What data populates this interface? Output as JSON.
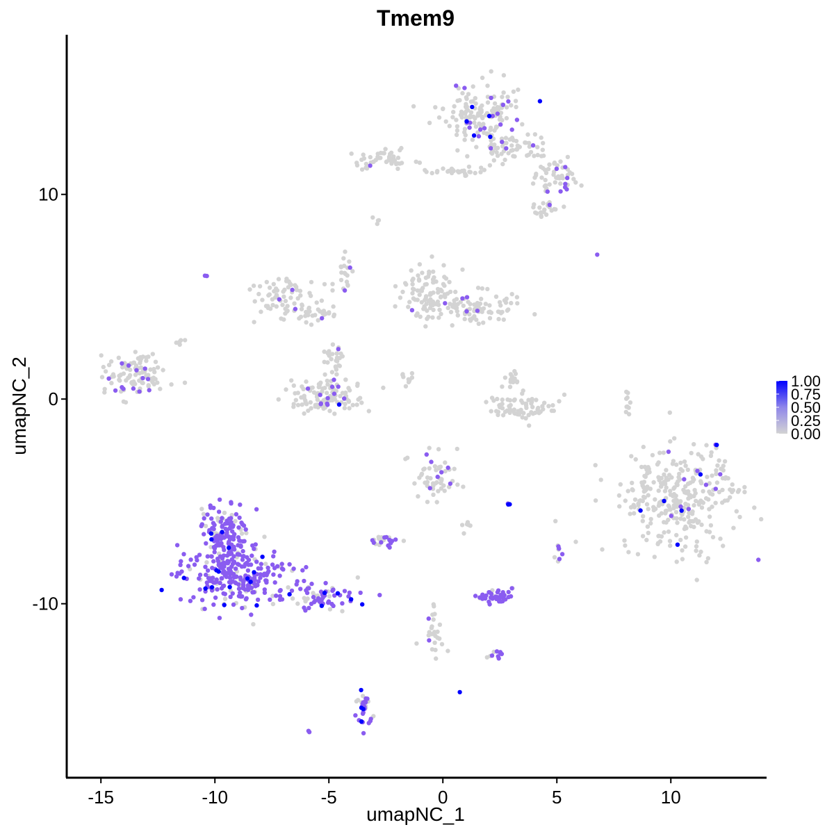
{
  "chart_data": {
    "type": "scatter",
    "title": "Tmem9",
    "xlabel": "umapNC_1",
    "ylabel": "umapNC_2",
    "xlim": [
      -16.5,
      14.2
    ],
    "ylim": [
      -18.5,
      17.8
    ],
    "x_ticks": [
      -15,
      -10,
      -5,
      0,
      5,
      10
    ],
    "x_tick_labels": [
      "-15",
      "-10",
      "-5",
      "0",
      "5",
      "10"
    ],
    "y_ticks": [
      -10,
      0,
      10
    ],
    "y_tick_labels": [
      "-10",
      "0",
      "10"
    ],
    "grid": false,
    "legend": {
      "placement": "right",
      "ticks": [
        1.0,
        0.75,
        0.5,
        0.25,
        0.0
      ],
      "tick_labels": [
        "1.00",
        "0.75",
        "0.50",
        "0.25",
        "0.00"
      ]
    },
    "color_low": "#d3d3d3",
    "color_high": "#0000ff",
    "color_mid": "#8a5cf0",
    "clusters": [
      {
        "cx": 1.6,
        "cy": 14.0,
        "rx": 1.5,
        "ry": 1.3,
        "n": 150,
        "frac": 0.12,
        "high": 0.02
      },
      {
        "cx": 3.2,
        "cy": 12.3,
        "rx": 1.4,
        "ry": 0.7,
        "n": 60,
        "frac": 0.05,
        "high": 0.01
      },
      {
        "cx": 5.0,
        "cy": 10.8,
        "rx": 1.0,
        "ry": 0.9,
        "n": 50,
        "frac": 0.12,
        "high": 0.02
      },
      {
        "cx": 4.5,
        "cy": 9.3,
        "rx": 0.6,
        "ry": 0.4,
        "n": 20,
        "frac": 0.1,
        "high": 0
      },
      {
        "cx": -2.6,
        "cy": 11.7,
        "rx": 1.1,
        "ry": 0.5,
        "n": 50,
        "frac": 0.03,
        "high": 0
      },
      {
        "cx": 0.6,
        "cy": 11.1,
        "rx": 1.4,
        "ry": 0.25,
        "n": 30,
        "frac": 0.03,
        "high": 0
      },
      {
        "cx": -7.0,
        "cy": 5.1,
        "rx": 1.3,
        "ry": 0.9,
        "n": 70,
        "frac": 0.05,
        "high": 0
      },
      {
        "cx": -5.5,
        "cy": 4.2,
        "rx": 0.8,
        "ry": 0.5,
        "n": 25,
        "frac": 0.06,
        "high": 0
      },
      {
        "cx": -5.0,
        "cy": 0.1,
        "rx": 1.5,
        "ry": 0.8,
        "n": 120,
        "frac": 0.1,
        "high": 0.01
      },
      {
        "cx": -4.7,
        "cy": 2.0,
        "rx": 0.4,
        "ry": 0.7,
        "n": 25,
        "frac": 0.02,
        "high": 0
      },
      {
        "cx": -4.3,
        "cy": 6.2,
        "rx": 0.3,
        "ry": 1.2,
        "n": 20,
        "frac": 0.15,
        "high": 0
      },
      {
        "cx": -0.7,
        "cy": 5.1,
        "rx": 1.1,
        "ry": 1.2,
        "n": 90,
        "frac": 0.03,
        "high": 0
      },
      {
        "cx": 1.3,
        "cy": 4.4,
        "rx": 1.7,
        "ry": 0.7,
        "n": 90,
        "frac": 0.03,
        "high": 0
      },
      {
        "cx": 3.4,
        "cy": -0.4,
        "rx": 1.2,
        "ry": 0.6,
        "n": 70,
        "frac": 0.0,
        "high": 0
      },
      {
        "cx": 3.1,
        "cy": 1.0,
        "rx": 0.4,
        "ry": 0.6,
        "n": 15,
        "frac": 0.0,
        "high": 0
      },
      {
        "cx": -1.6,
        "cy": 1.0,
        "rx": 0.6,
        "ry": 0.3,
        "n": 10,
        "frac": 0.0,
        "high": 0
      },
      {
        "cx": -13.4,
        "cy": 1.2,
        "rx": 1.3,
        "ry": 1.0,
        "n": 110,
        "frac": 0.1,
        "high": 0
      },
      {
        "cx": 10.4,
        "cy": -4.8,
        "rx": 2.4,
        "ry": 2.4,
        "n": 320,
        "frac": 0.08,
        "high": 0.03
      },
      {
        "cx": -0.3,
        "cy": -3.8,
        "rx": 0.9,
        "ry": 1.0,
        "n": 55,
        "frac": 0.12,
        "high": 0.04
      },
      {
        "cx": -9.6,
        "cy": -6.7,
        "rx": 1.0,
        "ry": 1.6,
        "n": 140,
        "frac": 0.8,
        "high": 0.04
      },
      {
        "cx": -9.0,
        "cy": -8.6,
        "rx": 2.0,
        "ry": 1.3,
        "n": 260,
        "frac": 0.8,
        "high": 0.04
      },
      {
        "cx": -5.3,
        "cy": -9.6,
        "rx": 1.5,
        "ry": 0.6,
        "n": 70,
        "frac": 0.75,
        "high": 0.06
      },
      {
        "cx": -2.5,
        "cy": -6.9,
        "rx": 0.5,
        "ry": 0.3,
        "n": 25,
        "frac": 0.5,
        "high": 0
      },
      {
        "cx": 2.3,
        "cy": -9.7,
        "rx": 0.7,
        "ry": 0.3,
        "n": 45,
        "frac": 0.9,
        "high": 0
      },
      {
        "cx": -3.5,
        "cy": -15.1,
        "rx": 0.3,
        "ry": 0.9,
        "n": 35,
        "frac": 0.75,
        "high": 0.1
      },
      {
        "cx": -0.3,
        "cy": -11.3,
        "rx": 0.4,
        "ry": 1.2,
        "n": 25,
        "frac": 0.2,
        "high": 0
      },
      {
        "cx": 2.4,
        "cy": -12.5,
        "rx": 0.4,
        "ry": 0.2,
        "n": 10,
        "frac": 0.5,
        "high": 0
      },
      {
        "cx": 5.1,
        "cy": -7.4,
        "rx": 0.2,
        "ry": 0.4,
        "n": 8,
        "frac": 0.7,
        "high": 0
      },
      {
        "cx": 8.1,
        "cy": -0.1,
        "rx": 0.2,
        "ry": 0.8,
        "n": 10,
        "frac": 0.1,
        "high": 0
      },
      {
        "cx": 1.0,
        "cy": -6.2,
        "rx": 0.2,
        "ry": 0.4,
        "n": 6,
        "frac": 0.2,
        "high": 0
      },
      {
        "cx": -2.9,
        "cy": 8.7,
        "rx": 0.2,
        "ry": 0.2,
        "n": 4,
        "frac": 0.0,
        "high": 0
      },
      {
        "cx": -11.5,
        "cy": 2.8,
        "rx": 0.3,
        "ry": 0.2,
        "n": 5,
        "frac": 0.0,
        "high": 0
      },
      {
        "cx": -5.9,
        "cy": -16.3,
        "rx": 0.1,
        "ry": 0.1,
        "n": 2,
        "frac": 1.0,
        "high": 0
      },
      {
        "cx": 0.7,
        "cy": -14.3,
        "rx": 0.05,
        "ry": 0.05,
        "n": 1,
        "frac": 1.0,
        "high": 1.0
      },
      {
        "cx": 2.9,
        "cy": -5.1,
        "rx": 0.1,
        "ry": 0.05,
        "n": 3,
        "frac": 1.0,
        "high": 0.9
      },
      {
        "cx": 6.8,
        "cy": 7.1,
        "rx": 0.05,
        "ry": 0.05,
        "n": 1,
        "frac": 1.0,
        "high": 0
      },
      {
        "cx": -10.4,
        "cy": 6.0,
        "rx": 0.05,
        "ry": 0.05,
        "n": 2,
        "frac": 1.0,
        "high": 0
      }
    ]
  }
}
